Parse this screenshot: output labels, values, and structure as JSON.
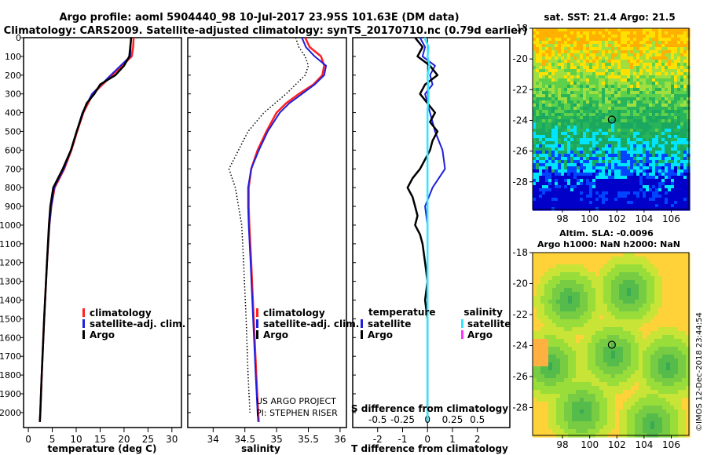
{
  "header": {
    "line1": "Argo profile: aoml 5904440_98 10-Jul-2017 23.95S 101.63E (DM data)",
    "line2": "Climatology: CARS2009. Satellite-adjusted climatology: synTS_20170710.nc (0.79d earlier)"
  },
  "colors": {
    "climatology": "#ff2020",
    "satellite": "#1f1fdc",
    "argo": "#000000",
    "sat_salinity": "#33e6ff",
    "argo_salinity": "#ff33ff"
  },
  "chart_data": [
    {
      "type": "line",
      "title": "",
      "xlabel": "temperature (deg C)",
      "ylabel": "",
      "xlim": [
        -1,
        32
      ],
      "ylim": [
        2080,
        0
      ],
      "xticks": [
        0,
        5,
        10,
        15,
        20,
        25,
        30
      ],
      "yticks": [
        0,
        100,
        200,
        300,
        400,
        500,
        600,
        700,
        800,
        900,
        1000,
        1100,
        1200,
        1300,
        1400,
        1500,
        1600,
        1700,
        1800,
        1900,
        2000
      ],
      "legend": [
        "climatology",
        "satellite-adj. clim.",
        "Argo"
      ],
      "series": [
        {
          "name": "climatology",
          "depth": [
            0,
            50,
            100,
            200,
            300,
            400,
            500,
            600,
            700,
            800,
            900,
            1000,
            1200,
            1500,
            1800,
            2000,
            2050
          ],
          "values": [
            22.0,
            21.9,
            21.6,
            17.5,
            13.5,
            11.5,
            10.2,
            9.0,
            7.5,
            5.5,
            4.8,
            4.4,
            3.9,
            3.3,
            2.8,
            2.5,
            2.4
          ]
        },
        {
          "name": "satellite-adj. clim.",
          "depth": [
            0,
            50,
            100,
            200,
            300,
            400,
            500,
            600,
            700,
            800,
            900,
            1000,
            1200,
            1500,
            1800,
            2000,
            2050
          ],
          "values": [
            21.5,
            21.4,
            21.3,
            17.2,
            13.3,
            11.3,
            10.1,
            8.9,
            7.4,
            5.4,
            4.8,
            4.4,
            3.9,
            3.3,
            2.8,
            2.5,
            2.4
          ]
        },
        {
          "name": "Argo",
          "depth": [
            0,
            50,
            100,
            150,
            200,
            250,
            300,
            350,
            400,
            500,
            600,
            700,
            800,
            900,
            1000,
            1200,
            1500,
            1800,
            2000,
            2050
          ],
          "values": [
            21.5,
            21.3,
            21.1,
            20.0,
            18.2,
            15.0,
            13.8,
            12.2,
            11.4,
            10.1,
            8.9,
            7.2,
            5.2,
            4.6,
            4.3,
            3.9,
            3.3,
            2.8,
            2.5,
            2.4
          ]
        }
      ]
    },
    {
      "type": "line",
      "xlabel": "salinity",
      "xlim": [
        33.6,
        36.1
      ],
      "ylim": [
        2080,
        0
      ],
      "xticks": [
        34,
        34.5,
        35,
        35.5,
        36
      ],
      "legend": [
        "climatology",
        "satellite-adj. clim.",
        "Argo"
      ],
      "annotations": [
        "US ARGO PROJECT",
        "PI: STEPHEN RISER"
      ],
      "series": [
        {
          "name": "climatology",
          "depth": [
            0,
            50,
            100,
            150,
            200,
            250,
            300,
            350,
            400,
            500,
            600,
            700,
            800,
            900,
            1000,
            1200,
            1500,
            1800,
            2000,
            2050
          ],
          "values": [
            35.45,
            35.52,
            35.7,
            35.75,
            35.72,
            35.58,
            35.35,
            35.15,
            35.0,
            34.84,
            34.7,
            34.6,
            34.56,
            34.56,
            34.57,
            34.6,
            34.64,
            34.68,
            34.71,
            34.72
          ]
        },
        {
          "name": "satellite-adj. clim.",
          "depth": [
            0,
            50,
            100,
            150,
            200,
            250,
            300,
            350,
            400,
            500,
            600,
            700,
            800,
            900,
            1000,
            1200,
            1500,
            1800,
            2000,
            2050
          ],
          "values": [
            35.4,
            35.46,
            35.6,
            35.78,
            35.75,
            35.6,
            35.4,
            35.2,
            35.05,
            34.86,
            34.72,
            34.6,
            34.55,
            34.55,
            34.56,
            34.59,
            34.63,
            34.67,
            34.7,
            34.71
          ]
        },
        {
          "name": "Argo",
          "depth": [
            0,
            50,
            100,
            150,
            200,
            250,
            300,
            350,
            400,
            500,
            600,
            700,
            800,
            900,
            1000,
            1200,
            1500,
            1800,
            2000,
            2050
          ],
          "values": [
            35.4,
            35.46,
            35.6,
            35.78,
            35.75,
            35.6,
            35.4,
            35.2,
            35.05,
            34.86,
            34.72,
            34.6,
            34.55,
            34.55,
            34.56,
            34.59,
            34.63,
            34.67,
            34.7,
            34.71
          ]
        },
        {
          "name": "dotted reference",
          "depth": [
            0,
            50,
            100,
            150,
            200,
            250,
            300,
            400,
            500,
            600,
            700,
            800,
            900,
            1000,
            1200,
            1500,
            1800,
            2000
          ],
          "values": [
            35.3,
            35.35,
            35.45,
            35.5,
            35.45,
            35.3,
            35.15,
            34.8,
            34.55,
            34.4,
            34.25,
            34.35,
            34.4,
            34.45,
            34.48,
            34.52,
            34.55,
            34.58
          ]
        }
      ]
    },
    {
      "type": "line",
      "xlabel": "T difference from climatology",
      "secondary_xlabel": "S difference from climatology",
      "xlim": [
        -3,
        3.3
      ],
      "ylim": [
        2080,
        0
      ],
      "xticks": [
        -2,
        -1,
        0,
        1,
        2
      ],
      "secondary_xticks": [
        "-0.5",
        "-0.25",
        "0",
        "0.25",
        "0.5"
      ],
      "legend_temperature_title": "temperature",
      "legend_salinity_title": "salinity",
      "legend_temperature": [
        "satellite",
        "Argo"
      ],
      "legend_salinity": [
        "satellite",
        "Argo"
      ],
      "series": [
        {
          "name": "T satellite",
          "depth": [
            0,
            50,
            100,
            150,
            200,
            250,
            300,
            400,
            500,
            600,
            700,
            800,
            900,
            1000,
            1200,
            1500,
            1800,
            2000,
            2050
          ],
          "values": [
            -0.3,
            -0.1,
            -0.2,
            0.3,
            0.1,
            0.2,
            -0.1,
            0.1,
            0.3,
            0.6,
            0.7,
            0.2,
            -0.1,
            0.0,
            0.0,
            0.0,
            0.0,
            0.0,
            0.0
          ]
        },
        {
          "name": "T Argo",
          "depth": [
            0,
            50,
            100,
            150,
            200,
            250,
            300,
            350,
            400,
            450,
            500,
            550,
            600,
            650,
            700,
            750,
            800,
            850,
            900,
            950,
            1000,
            1050,
            1100,
            1200,
            1300,
            1400,
            1500,
            1700,
            1900,
            2050
          ],
          "values": [
            -0.5,
            -0.2,
            -0.4,
            0.1,
            0.4,
            -0.1,
            -0.3,
            0.0,
            0.3,
            0.1,
            0.4,
            0.2,
            0.1,
            -0.1,
            -0.3,
            -0.6,
            -0.8,
            -0.6,
            -0.5,
            -0.4,
            -0.5,
            -0.3,
            -0.2,
            -0.1,
            0.0,
            -0.1,
            0.0,
            0.0,
            0.0,
            0.0
          ]
        },
        {
          "name": "S satellite",
          "depth": [
            0,
            50,
            100,
            150,
            200,
            300,
            400,
            600,
            800,
            1000,
            1500,
            2050
          ],
          "values": [
            -0.03,
            0.01,
            0.0,
            0.02,
            0.0,
            0.01,
            0.0,
            0.0,
            0.0,
            0.0,
            0.0,
            0.0
          ]
        }
      ]
    }
  ],
  "sst_map": {
    "title": "sat. SST: 21.4 Argo: 21.5",
    "lon_ticks": [
      "98",
      "100",
      "102",
      "104",
      "106"
    ],
    "lat_ticks": [
      "-18",
      "-20",
      "-22",
      "-24",
      "-26",
      "-28"
    ],
    "marker": {
      "lon": 101.63,
      "lat": -23.95
    }
  },
  "sla_map": {
    "title1": "Altim. SLA: -0.0096",
    "title2": "Argo h1000: NaN h2000: NaN",
    "lon_ticks": [
      "98",
      "100",
      "102",
      "104",
      "106"
    ],
    "lat_ticks": [
      "-18",
      "-20",
      "-22",
      "-24",
      "-26",
      "-28"
    ],
    "marker": {
      "lon": 101.63,
      "lat": -23.95
    }
  },
  "credit": "©IMOS 12-Dec-2018 23:44:54"
}
